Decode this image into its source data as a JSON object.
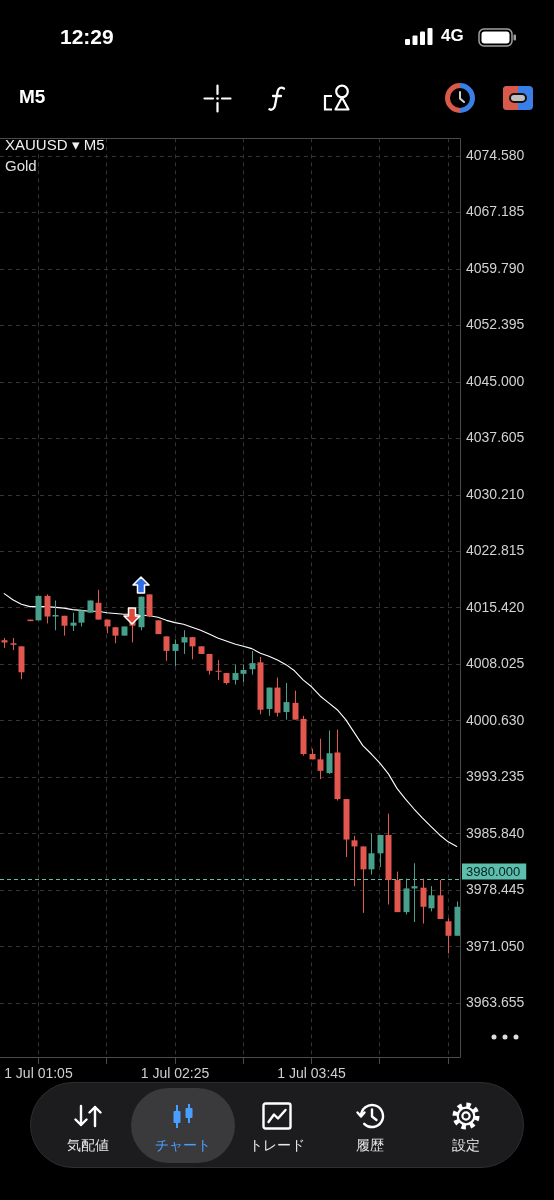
{
  "chart_data": {
    "type": "candlestick",
    "title": "XAUUSD ▾ M5",
    "subtitle": "Gold",
    "categories": [
      null,
      null,
      null,
      null,
      "1 Jul 01:05",
      null,
      null,
      null,
      null,
      null,
      null,
      null,
      null,
      null,
      null,
      null,
      null,
      null,
      null,
      null,
      "1 Jul 02:25",
      null,
      null,
      null,
      null,
      null,
      null,
      null,
      null,
      null,
      null,
      null,
      null,
      null,
      null,
      null,
      "1 Jul 03:45",
      null,
      null,
      null,
      null,
      null,
      null,
      null,
      null,
      null,
      null,
      null,
      null,
      null,
      null,
      null,
      null,
      null
    ],
    "ohlc": [
      [
        4011.2,
        4011.5,
        4010.2,
        4010.9
      ],
      [
        4010.8,
        4011.5,
        4009.9,
        4010.6
      ],
      [
        4010.4,
        4010.4,
        4006.1,
        4007.0
      ],
      [
        4013.9,
        4013.9,
        4013.7,
        4013.7
      ],
      [
        4013.8,
        4017.0,
        4013.8,
        4017.0
      ],
      [
        4017.0,
        4017.2,
        4013.4,
        4014.3
      ],
      [
        4014.3,
        4016.4,
        4012.5,
        4014.5
      ],
      [
        4014.4,
        4014.4,
        4011.8,
        4013.1
      ],
      [
        4013.1,
        4014.8,
        4012.4,
        4013.5
      ],
      [
        4013.5,
        4015.1,
        4013.0,
        4015.1
      ],
      [
        4014.8,
        4016.4,
        4014.8,
        4016.4
      ],
      [
        4016.1,
        4017.8,
        4013.9,
        4013.9
      ],
      [
        4013.9,
        4013.9,
        4012.1,
        4013.0
      ],
      [
        4012.9,
        4012.9,
        4010.8,
        4011.8
      ],
      [
        4011.8,
        4013.0,
        4011.8,
        4013.0
      ],
      [
        4013.7,
        4014.1,
        4010.9,
        4013.1
      ],
      [
        4012.9,
        4016.9,
        4012.5,
        4016.9
      ],
      [
        4017.2,
        4017.2,
        4014.2,
        4014.3
      ],
      [
        4013.8,
        4013.8,
        4012.0,
        4012.0
      ],
      [
        4011.7,
        4011.7,
        4008.5,
        4009.8
      ],
      [
        4009.8,
        4011.3,
        4007.8,
        4010.7
      ],
      [
        4010.9,
        4012.5,
        4009.4,
        4011.6
      ],
      [
        4011.6,
        4011.6,
        4008.7,
        4010.4
      ],
      [
        4010.4,
        4010.4,
        4009.4,
        4009.4
      ],
      [
        4009.4,
        4009.4,
        4006.7,
        4007.2
      ],
      [
        4007.2,
        4008.6,
        4006.0,
        4007.1
      ],
      [
        4006.9,
        4006.9,
        4005.4,
        4005.6
      ],
      [
        4006.0,
        4008.0,
        4005.4,
        4006.9
      ],
      [
        4006.8,
        4008.0,
        4005.7,
        4007.3
      ],
      [
        4007.4,
        4009.8,
        4006.7,
        4008.2
      ],
      [
        4008.3,
        4009.0,
        4001.5,
        4002.1
      ],
      [
        4002.2,
        4005.0,
        4001.3,
        4005.0
      ],
      [
        4005.0,
        4006.3,
        4001.2,
        4001.7
      ],
      [
        4001.8,
        4005.6,
        4000.8,
        4003.1
      ],
      [
        4003.0,
        4004.6,
        4000.8,
        4000.8
      ],
      [
        4000.9,
        4001.3,
        3996.1,
        3996.3
      ],
      [
        3996.3,
        3997.0,
        3995.6,
        3995.6
      ],
      [
        3995.6,
        3998.3,
        3993.0,
        3994.1
      ],
      [
        3993.8,
        3999.4,
        3993.7,
        3996.4
      ],
      [
        3996.5,
        3999.5,
        3990.2,
        3990.4
      ],
      [
        3990.4,
        3990.4,
        3982.8,
        3985.1
      ],
      [
        3985.0,
        3985.6,
        3979.0,
        3984.2
      ],
      [
        3984.2,
        3984.2,
        3975.5,
        3981.2
      ],
      [
        3981.2,
        3985.9,
        3980.5,
        3983.3
      ],
      [
        3983.3,
        3985.7,
        3981.5,
        3985.7
      ],
      [
        3985.7,
        3988.5,
        3976.6,
        3979.8
      ],
      [
        3979.8,
        3980.9,
        3975.6,
        3975.6
      ],
      [
        3975.6,
        3980.0,
        3975.3,
        3978.7
      ],
      [
        3978.7,
        3982.0,
        3974.3,
        3979.0
      ],
      [
        3978.8,
        3980.0,
        3974.1,
        3976.3
      ],
      [
        3976.1,
        3979.0,
        3975.7,
        3977.8
      ],
      [
        3977.8,
        3979.8,
        3974.7,
        3974.7
      ],
      [
        3974.4,
        3974.8,
        3970.2,
        3972.5
      ],
      [
        3972.5,
        3977.0,
        3972.5,
        3976.3
      ]
    ],
    "colors": [
      "#e2584e",
      "#e2584e",
      "#e2584e",
      "#e2584e",
      "#46a08c",
      "#e2584e",
      "#46a08c",
      "#e2584e",
      "#46a08c",
      "#46a08c",
      "#46a08c",
      "#e2584e",
      "#e2584e",
      "#e2584e",
      "#46a08c",
      "#e2584e",
      "#46a08c",
      "#e2584e",
      "#e2584e",
      "#e2584e",
      "#46a08c",
      "#46a08c",
      "#e2584e",
      "#e2584e",
      "#e2584e",
      "#e2584e",
      "#e2584e",
      "#46a08c",
      "#46a08c",
      "#46a08c",
      "#e2584e",
      "#46a08c",
      "#e2584e",
      "#46a08c",
      "#e2584e",
      "#e2584e",
      "#e2584e",
      "#e2584e",
      "#46a08c",
      "#e2584e",
      "#e2584e",
      "#e2584e",
      "#e2584e",
      "#46a08c",
      "#46a08c",
      "#e2584e",
      "#e2584e",
      "#46a08c",
      "#46a08c",
      "#e2584e",
      "#46a08c",
      "#e2584e",
      "#e2584e",
      "#46a08c"
    ],
    "series": [
      {
        "type": "line",
        "color": "#ffffff",
        "values": [
          4017.3,
          4016.5,
          4015.9,
          4015.6,
          4015.6,
          4015.6,
          4015.5,
          4015.4,
          4015.2,
          4015.1,
          4015.0,
          4015.0,
          4014.8,
          4014.7,
          4014.6,
          4014.6,
          4014.5,
          4014.4,
          4014.2,
          4013.8,
          4013.5,
          4013.3,
          4012.9,
          4012.5,
          4012.0,
          4011.5,
          4011.1,
          4010.7,
          4010.4,
          4010.1,
          4009.5,
          4009.1,
          4008.6,
          4008.0,
          4007.2,
          4006.0,
          4005.1,
          4003.9,
          4003.0,
          4002.1,
          4000.8,
          3999.1,
          3997.4,
          3996.3,
          3995.1,
          3993.7,
          3991.8,
          3990.4,
          3989.1,
          3987.9,
          3986.8,
          3985.7,
          3984.8,
          3984.2
        ]
      }
    ],
    "ylim": [
      3956.5,
      4076.9
    ],
    "yticks": [
      {
        "value": 4074.58,
        "label": "4074.580"
      },
      {
        "value": 4067.185,
        "label": "4067.185"
      },
      {
        "value": 4059.79,
        "label": "4059.790"
      },
      {
        "value": 4052.395,
        "label": "4052.395"
      },
      {
        "value": 4045,
        "label": "4045.000"
      },
      {
        "value": 4037.605,
        "label": "4037.605"
      },
      {
        "value": 4030.21,
        "label": "4030.210"
      },
      {
        "value": 4022.815,
        "label": "4022.815"
      },
      {
        "value": 4015.42,
        "label": "4015.420"
      },
      {
        "value": 4008.025,
        "label": "4008.025"
      },
      {
        "value": 4000.63,
        "label": "4000.630"
      },
      {
        "value": 3993.235,
        "label": "3993.235"
      },
      {
        "value": 3985.84,
        "label": "3985.840"
      },
      {
        "value": 3978.445,
        "label": "3978.445"
      },
      {
        "value": 3971.05,
        "label": "3971.050"
      },
      {
        "value": 3963.655,
        "label": "3963.655"
      }
    ],
    "grid": true,
    "ref_lines": [
      {
        "axis": "y",
        "value": 3980,
        "label": "3980.000",
        "color": "#5cbfae",
        "line_style": "dashed"
      }
    ],
    "annotations": [
      "12:29",
      "4G",
      "M5",
      "気配値",
      "チャート",
      "トレード",
      "履歴",
      "設定"
    ]
  }
}
